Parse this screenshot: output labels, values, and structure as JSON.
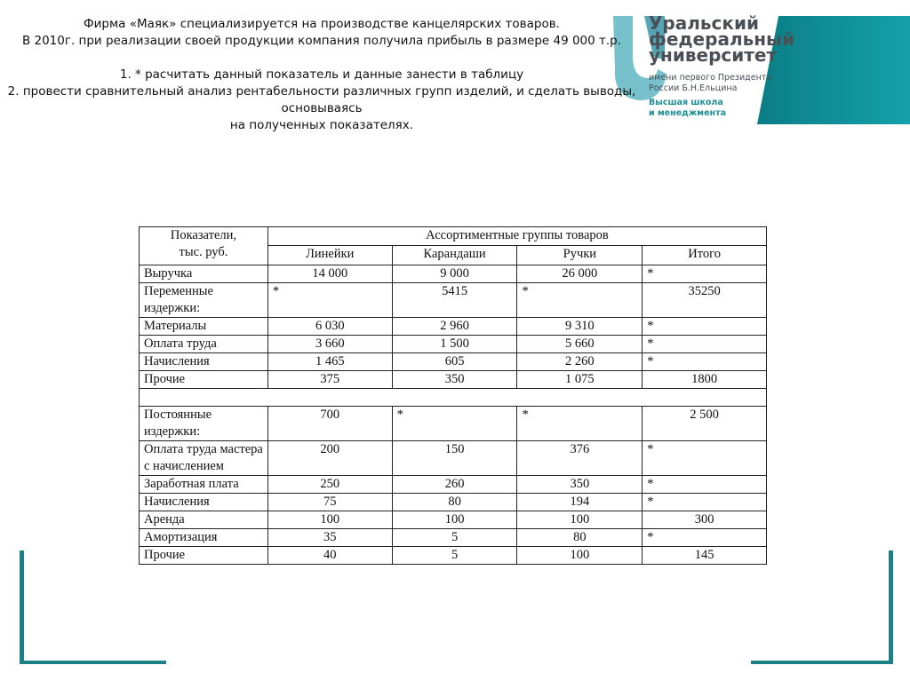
{
  "slide": {
    "title_lines": [
      "Фирма «Маяк» специализируется на производстве канцелярских товаров.",
      "В 2010г. при реализации своей продукции компания получила прибыль в размере 49 000 т.р.",
      "",
      "1. * расчитать данный показатель и данные занести в таблицу",
      "2. провести сравнительный анализ рентабельности различных групп изделий, и сделать выводы, основываясь",
      "на полученных показателях."
    ],
    "logo": {
      "lines": [
        "Уральский",
        "федеральный",
        "университет",
        "имени первого Президента",
        "России Б.Н.Ельцина",
        "Высшая школа",
        "и менеджмента"
      ],
      "accent": "#14a1aa"
    }
  },
  "table": {
    "header": {
      "row_label": [
        "Показатели,",
        "тыс. руб."
      ],
      "group": "Ассортиментные группы товаров",
      "columns": [
        "Линейки",
        "Карандаши",
        "Ручки",
        "Итого"
      ]
    },
    "rows": [
      {
        "label": "Выручка",
        "values": [
          "14 000",
          "9 000",
          "26 000",
          "*"
        ]
      },
      {
        "label": "Переменные издержки:",
        "values": [
          "*",
          "5415",
          "*",
          "35250"
        ]
      },
      {
        "label": "Материалы",
        "values": [
          "6 030",
          "2 960",
          "9 310",
          "*"
        ]
      },
      {
        "label": "Оплата труда",
        "values": [
          "3 660",
          "1 500",
          "5 660",
          "*"
        ]
      },
      {
        "label": "Начисления",
        "values": [
          "1 465",
          "605",
          "2 260",
          "*"
        ]
      },
      {
        "label": "Прочие",
        "values": [
          "375",
          "350",
          "1 075",
          "1800"
        ]
      },
      {
        "label": "",
        "values": [],
        "blank": true
      },
      {
        "label": "Постоянные издержки:",
        "values": [
          "700",
          "*",
          "*",
          "2 500"
        ]
      },
      {
        "label": "Оплата труда мастера с начислением",
        "values": [
          "200",
          "150",
          "376",
          "*"
        ]
      },
      {
        "label": "Заработная плата",
        "values": [
          "250",
          "260",
          "350",
          "*"
        ]
      },
      {
        "label": "Начисления",
        "values": [
          "75",
          "80",
          "194",
          "*"
        ]
      },
      {
        "label": "Аренда",
        "values": [
          "100",
          "100",
          "100",
          "300"
        ]
      },
      {
        "label": "Амортизация",
        "values": [
          "35",
          "5",
          "80",
          "*"
        ]
      },
      {
        "label": "Прочие",
        "values": [
          "40",
          "5",
          "100",
          "145"
        ]
      }
    ]
  }
}
